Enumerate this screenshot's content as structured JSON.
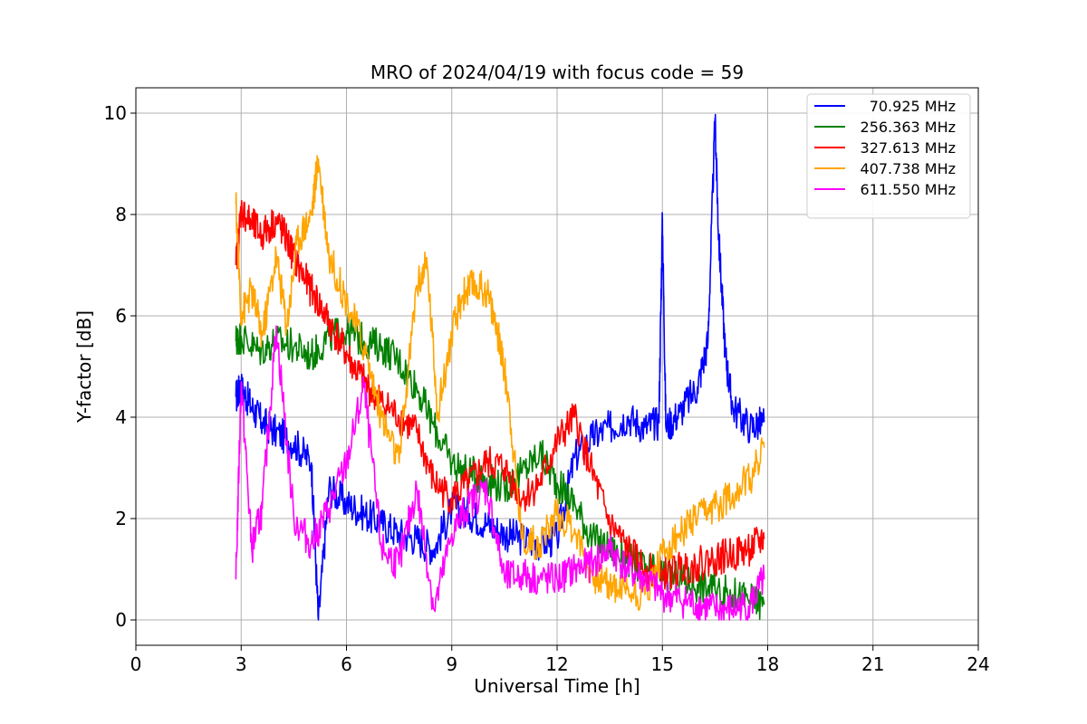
{
  "chart_data": {
    "type": "line",
    "title": "MRO of 2024/04/19 with focus code = 59",
    "xlabel": "Universal Time [h]",
    "ylabel": "Y-factor [dB]",
    "xlim": [
      0,
      24
    ],
    "ylim": [
      -0.5,
      10.5
    ],
    "xticks": [
      0,
      3,
      6,
      9,
      12,
      15,
      18,
      21,
      24
    ],
    "yticks": [
      0,
      2,
      4,
      6,
      8,
      10
    ],
    "grid": true,
    "legend_position": "top-right",
    "series": [
      {
        "name": "70.925 MHz",
        "color": "#0000ff",
        "x": [
          2.85,
          3.0,
          3.3,
          3.6,
          4.0,
          4.5,
          5.0,
          5.2,
          5.5,
          6.0,
          6.5,
          7.0,
          7.5,
          8.0,
          8.5,
          9.0,
          9.5,
          10.0,
          10.5,
          11.0,
          11.5,
          12.0,
          12.5,
          13.0,
          13.5,
          14.0,
          14.5,
          14.9,
          15.0,
          15.1,
          15.5,
          16.0,
          16.3,
          16.5,
          16.6,
          16.8,
          17.0,
          17.5,
          17.9
        ],
        "y": [
          4.4,
          4.6,
          4.2,
          3.9,
          3.7,
          3.5,
          3.1,
          0.0,
          2.6,
          2.3,
          2.1,
          1.9,
          1.7,
          1.6,
          1.4,
          2.2,
          2.1,
          1.9,
          1.7,
          1.6,
          1.5,
          1.6,
          3.2,
          3.6,
          3.8,
          4.0,
          3.8,
          3.9,
          7.9,
          3.8,
          4.1,
          4.6,
          5.5,
          9.9,
          7.6,
          5.2,
          4.2,
          3.8,
          3.9
        ]
      },
      {
        "name": "256.363 MHz",
        "color": "#008000",
        "x": [
          2.85,
          3.0,
          3.5,
          4.0,
          4.5,
          5.0,
          5.5,
          6.0,
          6.5,
          7.0,
          7.5,
          8.0,
          8.5,
          9.0,
          9.5,
          10.0,
          10.5,
          11.0,
          11.5,
          12.0,
          12.5,
          13.0,
          13.5,
          14.0,
          14.5,
          15.0,
          15.5,
          16.0,
          16.5,
          17.0,
          17.5,
          17.9
        ],
        "y": [
          5.5,
          5.6,
          5.3,
          5.5,
          5.4,
          5.2,
          5.6,
          5.7,
          5.5,
          5.4,
          5.1,
          4.6,
          3.8,
          3.1,
          2.9,
          2.8,
          2.6,
          2.9,
          3.3,
          2.7,
          2.3,
          1.6,
          1.4,
          1.2,
          1.0,
          0.9,
          0.8,
          0.7,
          0.6,
          0.5,
          0.4,
          0.3
        ]
      },
      {
        "name": "327.613 MHz",
        "color": "#ff0000",
        "x": [
          2.85,
          3.0,
          3.3,
          3.6,
          4.0,
          4.3,
          4.6,
          5.0,
          5.4,
          5.8,
          6.2,
          6.6,
          7.0,
          7.5,
          8.0,
          8.5,
          9.0,
          9.5,
          10.0,
          10.5,
          11.0,
          11.5,
          12.0,
          12.5,
          13.0,
          13.5,
          14.0,
          14.5,
          15.0,
          15.5,
          16.0,
          16.5,
          17.0,
          17.5,
          17.9
        ],
        "y": [
          7.0,
          8.1,
          7.8,
          7.6,
          7.9,
          7.5,
          7.0,
          6.5,
          6.0,
          5.5,
          5.0,
          4.6,
          4.3,
          4.0,
          3.7,
          2.7,
          2.4,
          2.7,
          3.1,
          3.0,
          2.4,
          2.7,
          3.5,
          4.0,
          2.9,
          1.9,
          1.4,
          1.0,
          0.9,
          1.0,
          1.1,
          1.2,
          1.3,
          1.4,
          1.6
        ]
      },
      {
        "name": "407.738 MHz",
        "color": "#ffa500",
        "x": [
          2.85,
          3.0,
          3.3,
          3.6,
          4.0,
          4.3,
          4.6,
          5.0,
          5.2,
          5.5,
          6.0,
          6.5,
          7.0,
          7.5,
          8.0,
          8.3,
          8.6,
          9.0,
          9.3,
          9.6,
          10.0,
          10.3,
          10.6,
          11.0,
          11.5,
          12.0,
          12.5,
          13.0,
          13.5,
          14.0,
          14.5,
          15.0,
          15.5,
          16.0,
          16.5,
          17.0,
          17.5,
          17.9
        ],
        "y": [
          8.2,
          6.0,
          6.5,
          5.6,
          7.2,
          5.8,
          7.5,
          8.0,
          9.1,
          7.2,
          6.3,
          5.4,
          4.0,
          3.1,
          6.6,
          7.0,
          4.1,
          5.6,
          6.4,
          6.6,
          6.5,
          5.7,
          4.5,
          1.6,
          1.5,
          2.1,
          1.8,
          0.9,
          0.7,
          0.6,
          0.5,
          1.3,
          1.7,
          2.0,
          2.2,
          2.5,
          2.8,
          3.4
        ]
      },
      {
        "name": "611.550 MHz",
        "color": "#ff00ff",
        "x": [
          2.85,
          3.0,
          3.3,
          3.6,
          4.0,
          4.5,
          5.0,
          5.5,
          6.0,
          6.5,
          7.0,
          7.5,
          8.0,
          8.5,
          9.0,
          9.5,
          10.0,
          10.5,
          11.0,
          11.5,
          12.0,
          12.5,
          13.0,
          13.5,
          14.0,
          14.5,
          15.0,
          15.5,
          16.0,
          16.5,
          17.0,
          17.5,
          17.9
        ],
        "y": [
          0.8,
          4.7,
          1.4,
          2.2,
          5.8,
          2.0,
          1.5,
          2.2,
          3.1,
          4.6,
          1.4,
          1.1,
          2.6,
          0.2,
          1.7,
          2.3,
          2.6,
          0.8,
          0.9,
          0.8,
          0.8,
          1.0,
          1.1,
          1.4,
          1.0,
          0.8,
          0.5,
          0.4,
          0.3,
          0.2,
          0.2,
          0.3,
          0.8
        ]
      }
    ]
  }
}
